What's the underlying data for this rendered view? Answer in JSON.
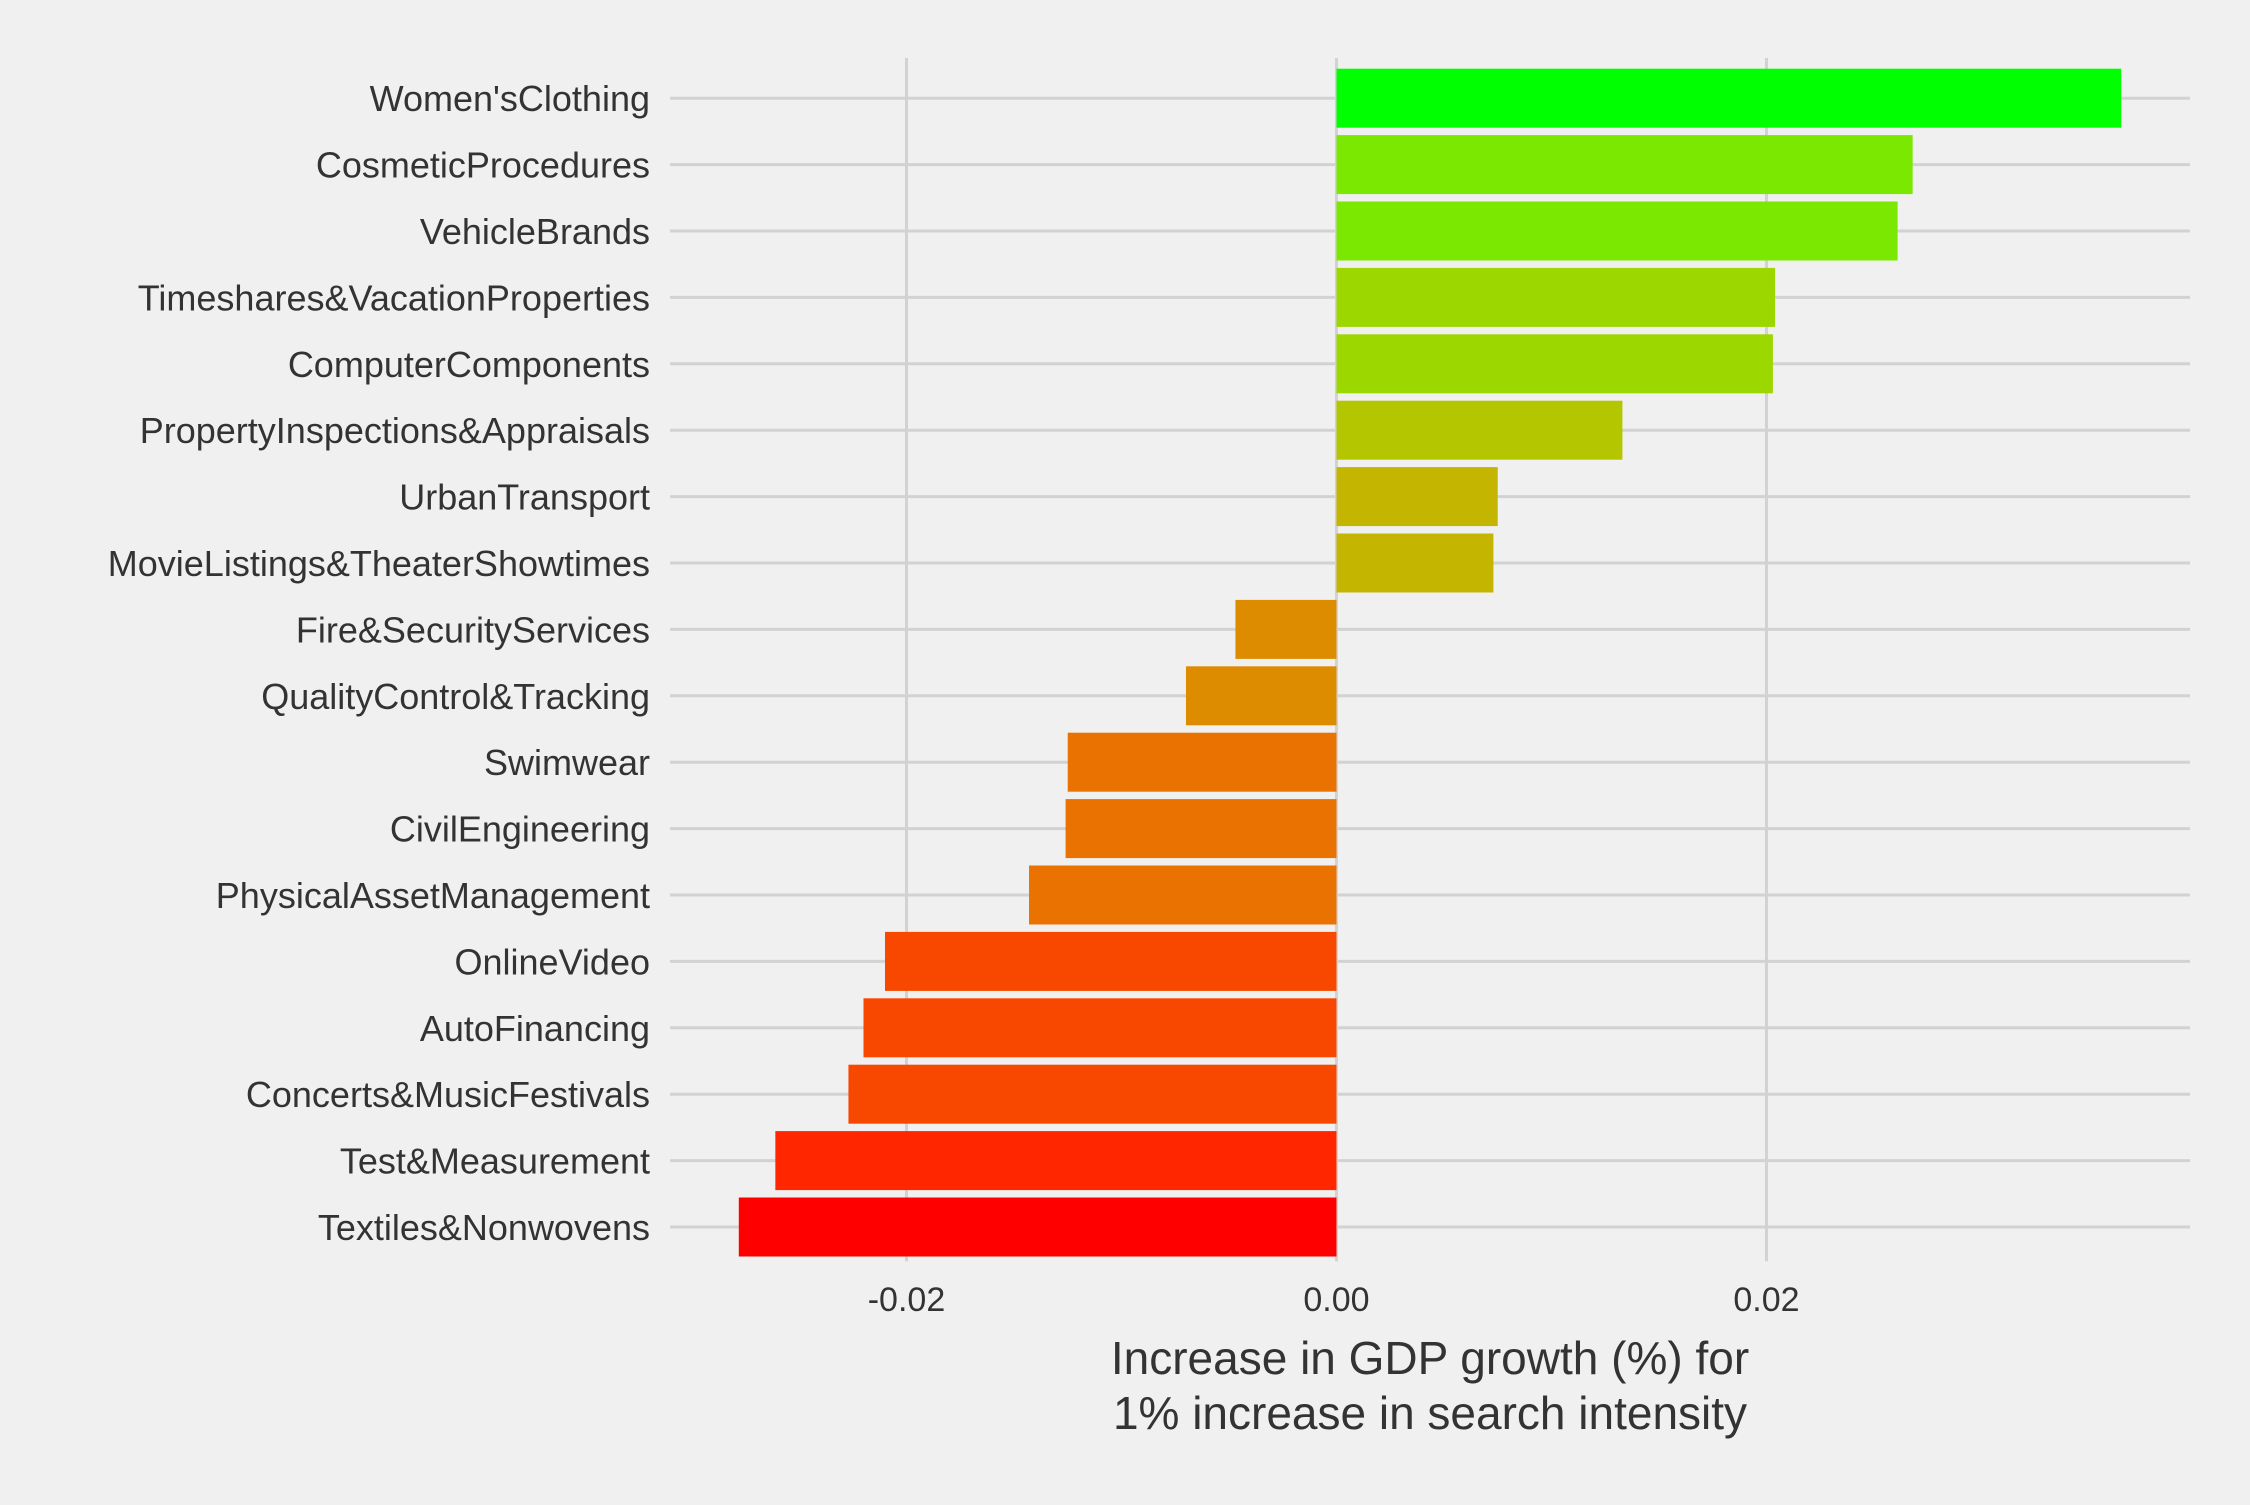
{
  "chart_data": {
    "type": "bar",
    "orientation": "horizontal",
    "title": "",
    "xlabel": [
      "Increase in GDP growth (%) for",
      "1% increase in search intensity"
    ],
    "ylabel": "",
    "xlim": [
      -0.031,
      0.0397
    ],
    "xticks": [
      {
        "value": -0.02,
        "label": "-0.02"
      },
      {
        "value": 0.0,
        "label": "0.00"
      },
      {
        "value": 0.02,
        "label": "0.02"
      }
    ],
    "grid": true,
    "legend": "none",
    "bars": [
      {
        "category": "Women'sClothing",
        "value": 0.0365,
        "color": "#00ff00"
      },
      {
        "category": "CosmeticProcedures",
        "value": 0.0268,
        "color": "#7ae800"
      },
      {
        "category": "VehicleBrands",
        "value": 0.0261,
        "color": "#7ae800"
      },
      {
        "category": "Timeshares&VacationProperties",
        "value": 0.0204,
        "color": "#9cd700"
      },
      {
        "category": "ComputerComponents",
        "value": 0.0203,
        "color": "#9cd700"
      },
      {
        "category": "PropertyInspections&Appraisals",
        "value": 0.0133,
        "color": "#b4c600"
      },
      {
        "category": "UrbanTransport",
        "value": 0.0075,
        "color": "#c4b600"
      },
      {
        "category": "MovieListings&TheaterShowtimes",
        "value": 0.0073,
        "color": "#c4b600"
      },
      {
        "category": "Fire&SecurityServices",
        "value": -0.0047,
        "color": "#dd8c00"
      },
      {
        "category": "QualityControl&Tracking",
        "value": -0.007,
        "color": "#dd8c00"
      },
      {
        "category": "Swimwear",
        "value": -0.0125,
        "color": "#ea7200"
      },
      {
        "category": "CivilEngineering",
        "value": -0.0126,
        "color": "#ea7200"
      },
      {
        "category": "PhysicalAssetManagement",
        "value": -0.0143,
        "color": "#ea7200"
      },
      {
        "category": "OnlineVideo",
        "value": -0.021,
        "color": "#f84800"
      },
      {
        "category": "AutoFinancing",
        "value": -0.022,
        "color": "#f84800"
      },
      {
        "category": "Concerts&MusicFestivals",
        "value": -0.0227,
        "color": "#f84800"
      },
      {
        "category": "Test&Measurement",
        "value": -0.0261,
        "color": "#ff2600"
      },
      {
        "category": "Textiles&Nonwovens",
        "value": -0.0278,
        "color": "#ff0000"
      }
    ]
  }
}
